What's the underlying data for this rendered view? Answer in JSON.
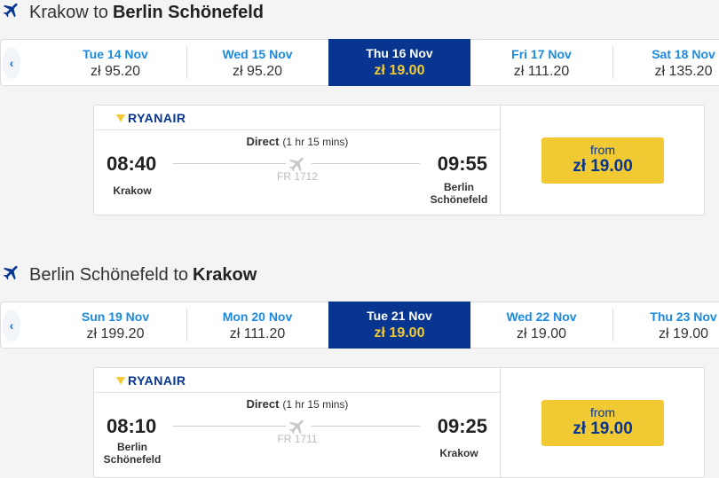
{
  "colors": {
    "brand": "#073590",
    "accent": "#f1c933",
    "date_link": "#1b8ae0"
  },
  "sections": [
    {
      "title_from": "Krakow to",
      "title_to": "Berlin Schönefeld",
      "dates": [
        {
          "day": "Tue 14 Nov",
          "price": "zł 95.20"
        },
        {
          "day": "Wed 15 Nov",
          "price": "zł 95.20"
        },
        {
          "day": "Thu 16 Nov",
          "price": "zł 19.00",
          "selected": true
        },
        {
          "day": "Fri 17 Nov",
          "price": "zł 111.20"
        },
        {
          "day": "Sat 18 Nov",
          "price": "zł 135.20"
        }
      ],
      "flight": {
        "airline": "RYANAIR",
        "type": "Direct",
        "duration": "(1 hr 15 mins)",
        "depart": "08:40",
        "arrive": "09:55",
        "from_line1": "Krakow",
        "from_line2": "",
        "to_line1": "Berlin",
        "to_line2": "Schönefeld",
        "number": "FR 1712",
        "price_from": "from",
        "price": "zł 19.00"
      }
    },
    {
      "title_from": "Berlin Schönefeld to",
      "title_to": "Krakow",
      "dates": [
        {
          "day": "Sun 19 Nov",
          "price": "zł 199.20"
        },
        {
          "day": "Mon 20 Nov",
          "price": "zł 111.20"
        },
        {
          "day": "Tue 21 Nov",
          "price": "zł 19.00",
          "selected": true
        },
        {
          "day": "Wed 22 Nov",
          "price": "zł 19.00"
        },
        {
          "day": "Thu 23 Nov",
          "price": "zł 19.00"
        }
      ],
      "flight": {
        "airline": "RYANAIR",
        "type": "Direct",
        "duration": "(1 hr 15 mins)",
        "depart": "08:10",
        "arrive": "09:25",
        "from_line1": "Berlin",
        "from_line2": "Schönefeld",
        "to_line1": "Krakow",
        "to_line2": "",
        "number": "FR 1711",
        "price_from": "from",
        "price": "zł 19.00"
      }
    }
  ]
}
